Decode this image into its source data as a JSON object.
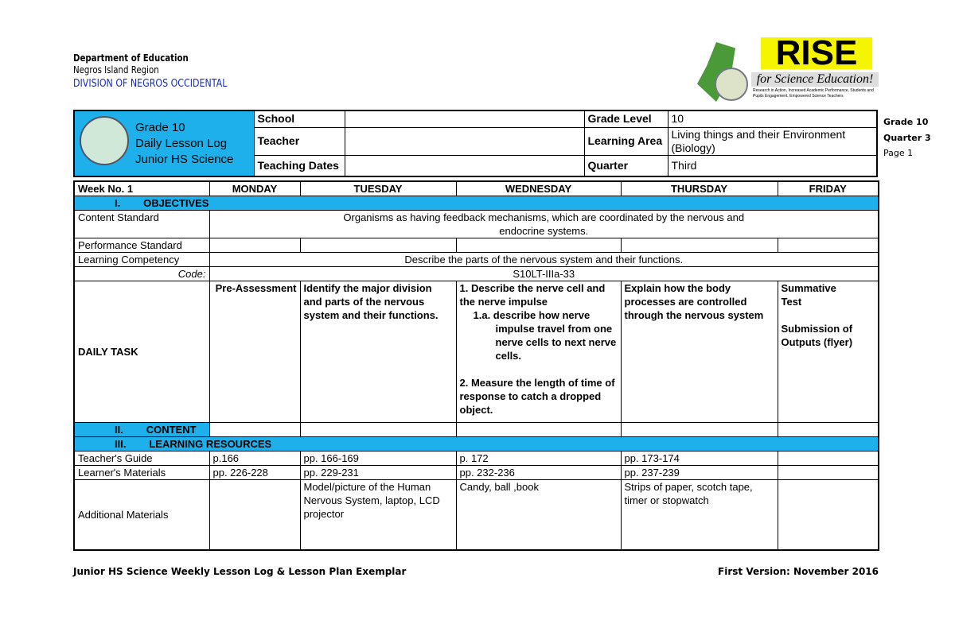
{
  "header": {
    "dept": "Department of Education",
    "region": "Negros Island Region",
    "division": "DIVISION OF NEGROS OCCIDENTAL"
  },
  "logo": {
    "title": "RISE",
    "subtitle": "for Science Education!",
    "tagline": "Research in Action, Increased Academic Performance, Students and Pupils Engagement, Empowered Science Teachers"
  },
  "info": {
    "title_lines": [
      "Grade 10",
      "Daily Lesson Log",
      "Junior HS Science"
    ],
    "school_label": "School",
    "school": "",
    "teacher_label": "Teacher",
    "teacher": "",
    "dates_label": "Teaching Dates",
    "dates": "",
    "grade_label": "Grade Level",
    "grade": "10",
    "area_label": "Learning Area",
    "area": "Living things and their Environment (Biology)",
    "quarter_label": "Quarter",
    "quarter": "Third"
  },
  "side": {
    "grade": "Grade 10",
    "quarter": "Quarter 3",
    "page": "Page 1"
  },
  "table": {
    "week": "Week No. 1",
    "days": [
      "MONDAY",
      "TUESDAY",
      "WEDNESDAY",
      "THURSDAY",
      "FRIDAY"
    ],
    "objectives": "I.        OBJECTIVES",
    "content_std_label": "Content Standard",
    "content_std": "Organisms as having feedback mechanisms, which are coordinated by the nervous and endocrine systems.",
    "perf_std_label": "Performance Standard",
    "competency_label": "Learning Competency",
    "competency": "Describe the parts of the nervous system and their functions.",
    "code_label": "Code:",
    "code": "S10LT-IIIa-33",
    "daily_label": "DAILY TASK",
    "daily": {
      "mon": "Pre-Assessment",
      "tue": "Identify the major division and parts of the nervous system and their functions.",
      "wed1": "1. Describe the nerve cell and the nerve impulse",
      "wed1a": "1.a. describe how nerve impulse travel from one nerve cells to next nerve cells.",
      "wed2": "2. Measure the length of time of response to catch a dropped object.",
      "thu": "Explain how the body processes are controlled through the nervous system",
      "fri1": "Summative Test",
      "fri2": "Submission of Outputs (flyer)"
    },
    "content": "II.        CONTENT",
    "resources": "III.        LEARNING RESOURCES",
    "tg_label": "Teacher's Guide",
    "tg": [
      "p.166",
      "pp. 166-169",
      "p. 172",
      "pp. 173-174",
      ""
    ],
    "lm_label": "Learner's Materials",
    "lm": [
      "pp. 226-228",
      "pp. 229-231",
      "pp. 232-236",
      "pp. 237-239",
      ""
    ],
    "am_label": "Additional Materials",
    "am": [
      "",
      "Model/picture of the Human Nervous System, laptop, LCD projector",
      "Candy, ball ,book",
      "Strips of paper, scotch tape, timer or stopwatch",
      ""
    ]
  },
  "footer": {
    "left": "Junior HS Science Weekly Lesson Log & Lesson Plan Exemplar",
    "right": "First Version: November 2016"
  },
  "colors": {
    "accent": "#1eb0ea",
    "logo_yellow": "#f5f500"
  }
}
